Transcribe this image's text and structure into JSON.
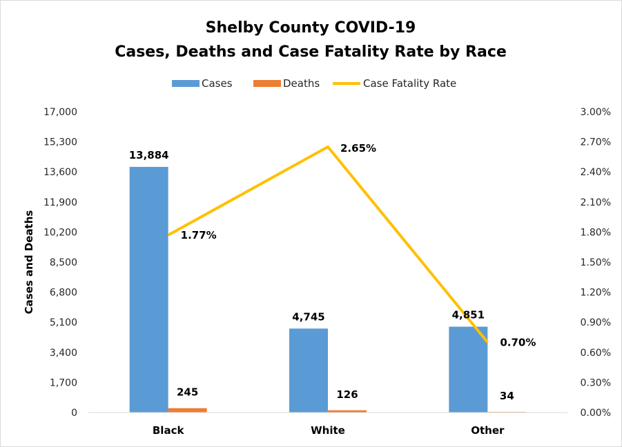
{
  "chart_data": {
    "type": "bar",
    "title_line1": "Shelby County COVID-19",
    "title_line2": "Cases, Deaths and Case Fatality Rate by Race",
    "categories": [
      "Black",
      "White",
      "Other"
    ],
    "series": [
      {
        "name": "Cases",
        "type": "bar",
        "axis": "left",
        "color": "#5b9bd5",
        "values": [
          13884,
          4745,
          4851
        ],
        "labels": [
          "13,884",
          "4,745",
          "4,851"
        ]
      },
      {
        "name": "Deaths",
        "type": "bar",
        "axis": "left",
        "color": "#ed7d31",
        "values": [
          245,
          126,
          34
        ],
        "labels": [
          "245",
          "126",
          "34"
        ]
      },
      {
        "name": "Case Fatality Rate",
        "type": "line",
        "axis": "right",
        "color": "#ffc000",
        "values": [
          1.77,
          2.65,
          0.7
        ],
        "labels": [
          "1.77%",
          "2.65%",
          "0.70%"
        ]
      }
    ],
    "ylabel": "Cases and Deaths",
    "y_left": {
      "min": 0,
      "max": 17000,
      "ticks": [
        "0",
        "1,700",
        "3,400",
        "5,100",
        "6,800",
        "8,500",
        "10,200",
        "11,900",
        "13,600",
        "15,300",
        "17,000"
      ]
    },
    "y_right": {
      "min": 0,
      "max": 3.0,
      "ticks": [
        "0.00%",
        "0.30%",
        "0.60%",
        "0.90%",
        "1.20%",
        "1.50%",
        "1.80%",
        "2.10%",
        "2.40%",
        "2.70%",
        "3.00%"
      ]
    },
    "grid": false,
    "legend_position": "top"
  }
}
